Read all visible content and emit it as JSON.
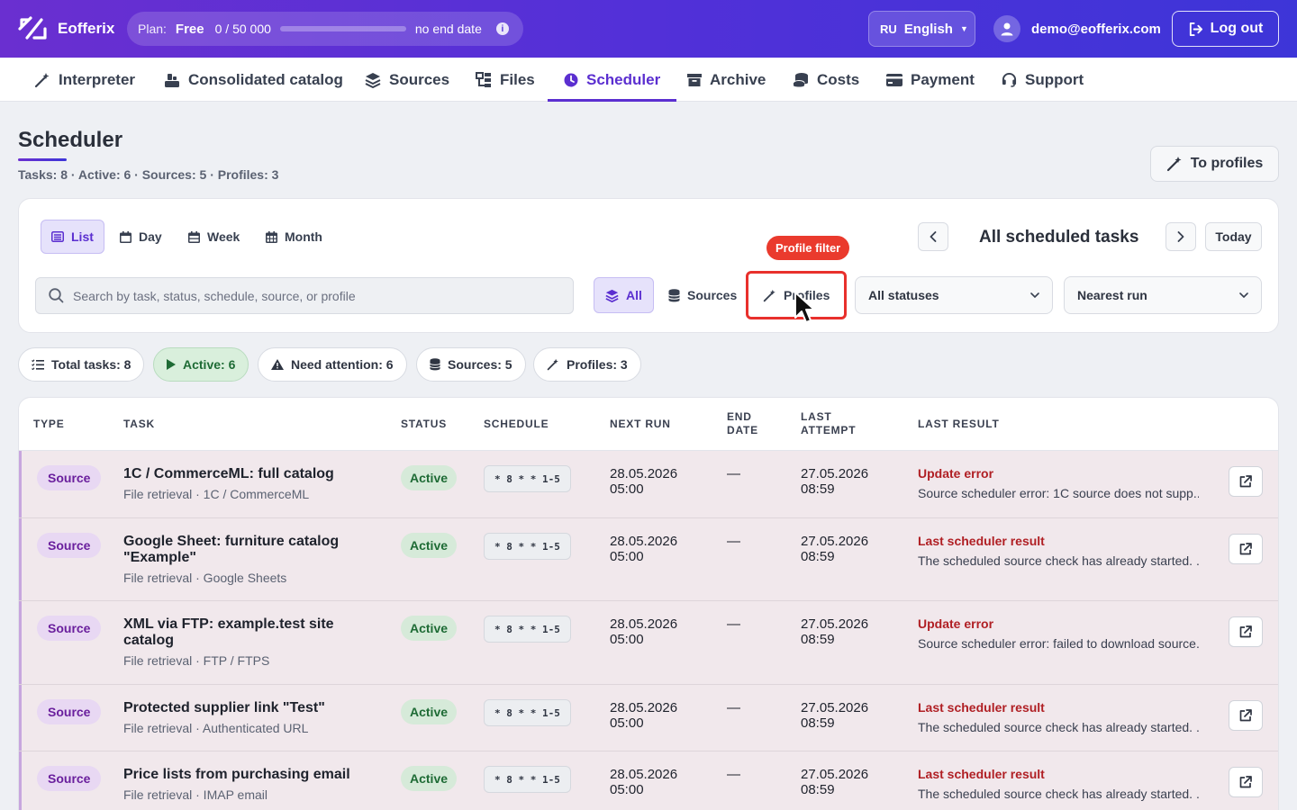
{
  "header": {
    "app_name": "Eofferix",
    "plan_label": "Plan:",
    "plan_name": "Free",
    "usage_text": "0 / 50 000",
    "usage_fraction": 0,
    "end_text": "no end date",
    "lang_code": "RU",
    "lang_name": "English",
    "user_email": "demo@eofferix.com",
    "logout_label": "Log out"
  },
  "nav": {
    "items": [
      {
        "label": "Interpreter",
        "icon": "magic-wand-icon"
      },
      {
        "label": "Consolidated catalog",
        "icon": "catalog-icon"
      },
      {
        "label": "Sources",
        "icon": "layers-icon"
      },
      {
        "label": "Files",
        "icon": "files-icon"
      },
      {
        "label": "Scheduler",
        "icon": "clock-icon",
        "active": true
      },
      {
        "label": "Archive",
        "icon": "archive-icon"
      },
      {
        "label": "Costs",
        "icon": "coins-icon"
      },
      {
        "label": "Payment",
        "icon": "card-icon"
      },
      {
        "label": "Support",
        "icon": "headset-icon"
      }
    ]
  },
  "page": {
    "title": "Scheduler",
    "subtitle": "Tasks: 8 · Active: 6 · Sources: 5 · Profiles: 3",
    "to_profiles_label": "To profiles"
  },
  "filters": {
    "views": [
      "List",
      "Day",
      "Week",
      "Month"
    ],
    "active_view": "List",
    "range_title": "All scheduled tasks",
    "today_label": "Today",
    "search_placeholder": "Search by task, status, schedule, source, or profile",
    "segments": [
      "All",
      "Sources",
      "Profiles"
    ],
    "status_select": "All statuses",
    "sort_select": "Nearest run",
    "tooltip": "Profile filter"
  },
  "stats": {
    "total": "Total tasks: 8",
    "active": "Active: 6",
    "attention": "Need attention: 6",
    "sources": "Sources: 5",
    "profiles": "Profiles: 3"
  },
  "table": {
    "headers": {
      "type": "TYPE",
      "task": "TASK",
      "status": "STATUS",
      "schedule": "SCHEDULE",
      "next_run": "NEXT RUN",
      "end_date_1": "END",
      "end_date_2": "DATE",
      "last_attempt_1": "LAST",
      "last_attempt_2": "ATTEMPT",
      "last_result": "LAST RESULT"
    },
    "rows": [
      {
        "type": "Source",
        "name": "1C / CommerceML: full catalog",
        "sub": "File retrieval · 1C / CommerceML",
        "status": "Active",
        "cron": "* 8 * * 1-5",
        "next_date": "28.05.2026",
        "next_time": "05:00",
        "end": "—",
        "last_date": "27.05.2026",
        "last_time": "08:59",
        "result_title": "Update error",
        "result_text": "Source scheduler error: 1C source does not supp..."
      },
      {
        "type": "Source",
        "name": "Google Sheet: furniture catalog \"Example\"",
        "sub": "File retrieval · Google Sheets",
        "status": "Active",
        "cron": "* 8 * * 1-5",
        "next_date": "28.05.2026",
        "next_time": "05:00",
        "end": "—",
        "last_date": "27.05.2026",
        "last_time": "08:59",
        "result_title": "Last scheduler result",
        "result_text": "The scheduled source check has already started. ..."
      },
      {
        "type": "Source",
        "name": "XML via FTP: example.test site catalog",
        "sub": "File retrieval · FTP / FTPS",
        "status": "Active",
        "cron": "* 8 * * 1-5",
        "next_date": "28.05.2026",
        "next_time": "05:00",
        "end": "—",
        "last_date": "27.05.2026",
        "last_time": "08:59",
        "result_title": "Update error",
        "result_text": "Source scheduler error: failed to download source..."
      },
      {
        "type": "Source",
        "name": "Protected supplier link \"Test\"",
        "sub": "File retrieval · Authenticated URL",
        "status": "Active",
        "cron": "* 8 * * 1-5",
        "next_date": "28.05.2026",
        "next_time": "05:00",
        "end": "—",
        "last_date": "27.05.2026",
        "last_time": "08:59",
        "result_title": "Last scheduler result",
        "result_text": "The scheduled source check has already started. ..."
      },
      {
        "type": "Source",
        "name": "Price lists from purchasing email",
        "sub": "File retrieval · IMAP email",
        "status": "Active",
        "cron": "* 8 * * 1-5",
        "next_date": "28.05.2026",
        "next_time": "05:00",
        "end": "—",
        "last_date": "27.05.2026",
        "last_time": "08:59",
        "result_title": "Last scheduler result",
        "result_text": "The scheduled source check has already started. ..."
      }
    ]
  },
  "colors": {
    "brand": "#5b2fd0",
    "error": "#b01f24",
    "active_green": "#1e6b35",
    "highlight": "#e8302c"
  }
}
